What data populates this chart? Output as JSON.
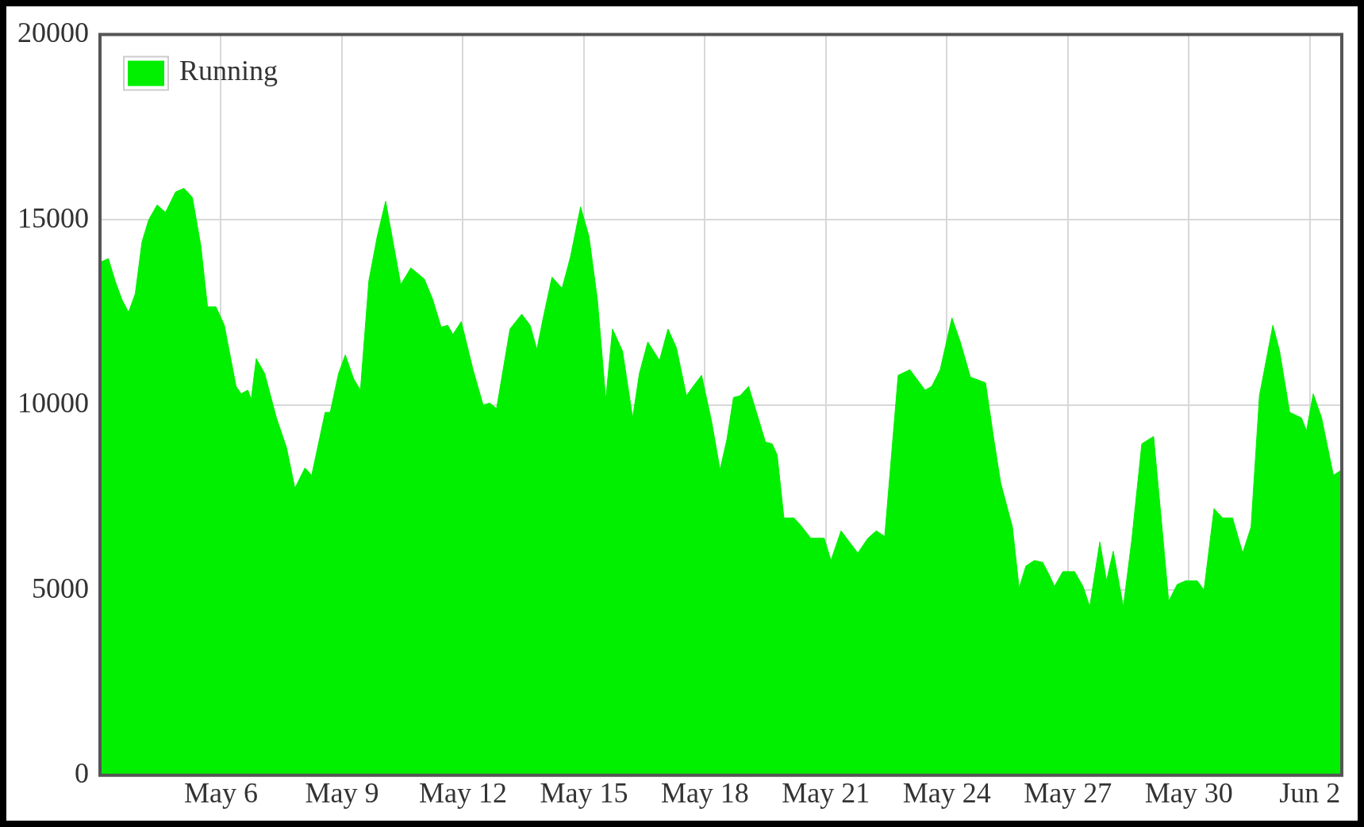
{
  "chart_data": {
    "type": "area",
    "series": [
      {
        "name": "Running",
        "color": "#00f000",
        "x": [
          "--05-03T00:00",
          "--05-03T05:00",
          "--05-03T09:00",
          "--05-03T13:00",
          "--05-03T17:00",
          "--05-03T21:00",
          "--05-04T01:00",
          "--05-04T05:00",
          "--05-04T10:00",
          "--05-04T15:00",
          "--05-04T21:00",
          "--05-05T02:00",
          "--05-05T07:00",
          "--05-05T12:00",
          "--05-05T16:00",
          "--05-05T21:00",
          "--05-06T02:00",
          "--05-06T09:00",
          "--05-06T12:00",
          "--05-06T16:00",
          "--05-06T18:00",
          "--05-06T21:00",
          "--05-07T02:00",
          "--05-07T09:00",
          "--05-07T15:00",
          "--05-07T20:00",
          "--05-08T02:00",
          "--05-08T06:00",
          "--05-08T14:00",
          "--05-08T17:00",
          "--05-08T22:00",
          "--05-09T02:00",
          "--05-09T07:00",
          "--05-09T11:00",
          "--05-09T16:00",
          "--05-09T21:00",
          "--05-10T02:00",
          "--05-10T07:00",
          "--05-10T11:00",
          "--05-10T17:00",
          "--05-11T01:00",
          "--05-11T06:00",
          "--05-11T11:00",
          "--05-11T15:00",
          "--05-11T18:00",
          "--05-11T23:00",
          "--05-12T06:00",
          "--05-12T12:00",
          "--05-12T16:00",
          "--05-12T20:00",
          "--05-13T04:00",
          "--05-13T11:00",
          "--05-13T16:00",
          "--05-13T20:00",
          "--05-14T00:00",
          "--05-14T05:00",
          "--05-14T11:00",
          "--05-14T16:00",
          "--05-14T22:00",
          "--05-15T03:00",
          "--05-15T08:00",
          "--05-15T13:00",
          "--05-15T17:00",
          "--05-15T23:00",
          "--05-16T05:00",
          "--05-16T09:00",
          "--05-16T14:00",
          "--05-16T21:00",
          "--05-17T02:00",
          "--05-17T07:00",
          "--05-17T13:00",
          "--05-17T17:00",
          "--05-17T22:00",
          "--05-18T04:00",
          "--05-18T09:00",
          "--05-18T13:00",
          "--05-18T17:00",
          "--05-18T21:00",
          "--05-19T02:00",
          "--05-19T06:00",
          "--05-19T12:00",
          "--05-19T16:00",
          "--05-19T19:00",
          "--05-19T23:00",
          "--05-20T05:00",
          "--05-20T09:00",
          "--05-20T15:00",
          "--05-20T23:00",
          "--05-21T03:00",
          "--05-21T09:00",
          "--05-21T14:00",
          "--05-21T19:00",
          "--05-22T01:00",
          "--05-22T06:00",
          "--05-22T11:00",
          "--05-22T19:00",
          "--05-23T02:00",
          "--05-23T11:00",
          "--05-23T15:00",
          "--05-23T20:00",
          "--05-24T03:00",
          "--05-24T08:00",
          "--05-24T14:00",
          "--05-24T23:00",
          "--05-25T04:00",
          "--05-25T08:00",
          "--05-25T15:00",
          "--05-25T19:00",
          "--05-25T23:00",
          "--05-26T04:00",
          "--05-26T09:00",
          "--05-26T13:00",
          "--05-26T16:00",
          "--05-26T21:00",
          "--05-27T04:00",
          "--05-27T09:00",
          "--05-27T13:00",
          "--05-27T19:00",
          "--05-27T23:00",
          "--05-28T03:00",
          "--05-28T09:00",
          "--05-28T14:00",
          "--05-28T20:00",
          "--05-29T03:00",
          "--05-29T08:00",
          "--05-29T12:00",
          "--05-29T17:00",
          "--05-29T22:00",
          "--05-30T05:00",
          "--05-30T09:00",
          "--05-30T15:00",
          "--05-30T20:00",
          "--05-31T02:00",
          "--05-31T08:00",
          "--05-31T13:00",
          "--05-31T18:00",
          "--06-01T02:00",
          "--06-01T06:00",
          "--06-01T12:00",
          "--06-01T19:00",
          "--06-01T22:00",
          "--06-02T02:00",
          "--06-02T07:00",
          "--06-02T14:00",
          "--06-02T19:00"
        ],
        "values": [
          13850,
          13950,
          13350,
          12850,
          12500,
          13000,
          14400,
          15000,
          15400,
          15200,
          15750,
          15850,
          15600,
          14300,
          12650,
          12650,
          12150,
          10500,
          10300,
          10400,
          10150,
          11250,
          10850,
          9650,
          8850,
          7750,
          8300,
          8100,
          9800,
          9800,
          10850,
          11350,
          10700,
          10400,
          13350,
          14550,
          15500,
          14250,
          13250,
          13700,
          13400,
          12850,
          12100,
          12150,
          11900,
          12250,
          10950,
          10000,
          10050,
          9900,
          12050,
          12450,
          12150,
          11500,
          12400,
          13450,
          13150,
          14000,
          15350,
          14550,
          12850,
          10150,
          12050,
          11450,
          9650,
          10850,
          11700,
          11200,
          12050,
          11550,
          10250,
          10500,
          10800,
          9550,
          8250,
          9050,
          10200,
          10250,
          10500,
          9900,
          9000,
          8950,
          8650,
          6950,
          6950,
          6750,
          6400,
          6400,
          5800,
          6600,
          6300,
          6000,
          6400,
          6600,
          6450,
          10800,
          10950,
          10400,
          10500,
          10950,
          12350,
          11700,
          10750,
          10600,
          9050,
          7900,
          6700,
          5050,
          5650,
          5800,
          5750,
          5400,
          5100,
          5500,
          5500,
          5100,
          4550,
          6300,
          5250,
          6050,
          4550,
          6350,
          8950,
          9150,
          6700,
          4700,
          5150,
          5250,
          5250,
          5000,
          7200,
          6950,
          6950,
          6000,
          6700,
          10250,
          12150,
          11450,
          9800,
          9650,
          9300,
          10300,
          9650,
          8100,
          8250
        ]
      }
    ],
    "xlim": [
      "--05-03T00:00",
      "--06-02T19:00"
    ],
    "xticks": [
      {
        "value": "--05-06",
        "label": "May 6"
      },
      {
        "value": "--05-09",
        "label": "May 9"
      },
      {
        "value": "--05-12",
        "label": "May 12"
      },
      {
        "value": "--05-15",
        "label": "May 15"
      },
      {
        "value": "--05-18",
        "label": "May 18"
      },
      {
        "value": "--05-21",
        "label": "May 21"
      },
      {
        "value": "--05-24",
        "label": "May 24"
      },
      {
        "value": "--05-27",
        "label": "May 27"
      },
      {
        "value": "--05-30",
        "label": "May 30"
      },
      {
        "value": "--06-02",
        "label": "Jun 2"
      }
    ],
    "ylim": [
      0,
      20000
    ],
    "yticks": [
      0,
      5000,
      10000,
      15000,
      20000
    ],
    "grid": true,
    "legend": "top left"
  }
}
